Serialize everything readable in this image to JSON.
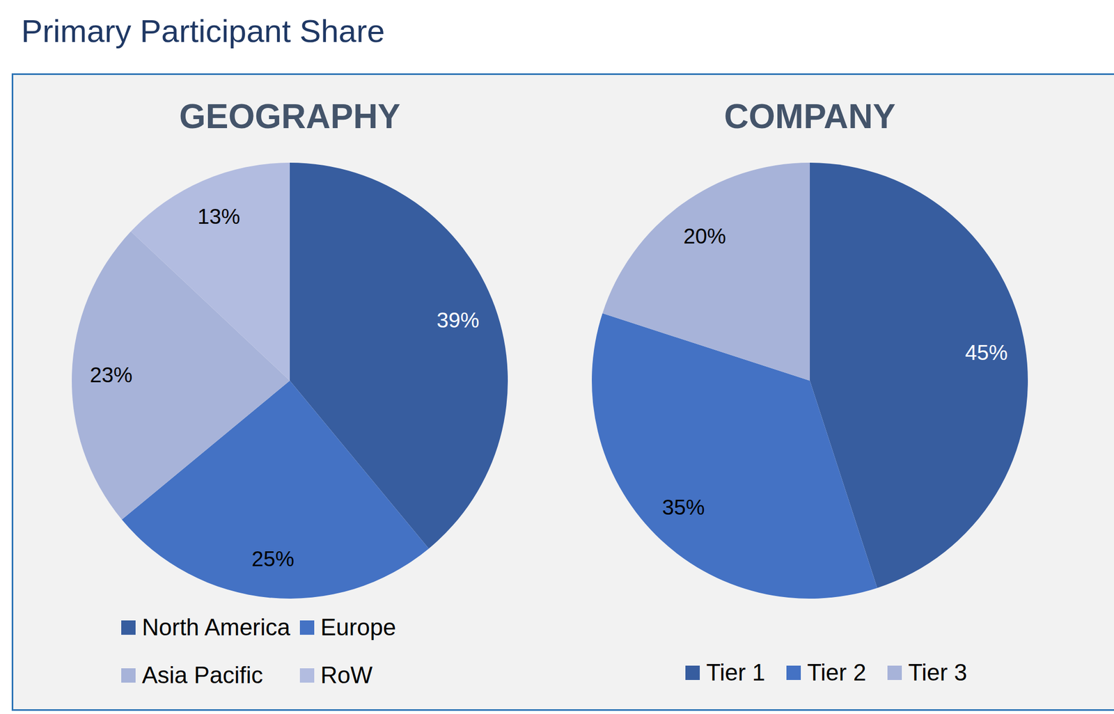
{
  "title": "Primary Participant Share",
  "chart_data": [
    {
      "type": "pie",
      "title": "GEOGRAPHY",
      "categories": [
        "North America",
        "Europe",
        "Asia Pacific",
        "RoW"
      ],
      "values": [
        39,
        25,
        23,
        13
      ],
      "value_labels": [
        "39%",
        "25%",
        "23%",
        "13%"
      ],
      "colors": [
        "#375d9f",
        "#4472c4",
        "#a7b3d9",
        "#b2bce0"
      ],
      "data_labels": true
    },
    {
      "type": "pie",
      "title": "COMPANY",
      "categories": [
        "Tier 1",
        "Tier 2",
        "Tier 3"
      ],
      "values": [
        45,
        35,
        20
      ],
      "value_labels": [
        "45%",
        "35%",
        "20%"
      ],
      "colors": [
        "#375d9f",
        "#4472c4",
        "#a7b3d9"
      ],
      "data_labels": true
    }
  ]
}
